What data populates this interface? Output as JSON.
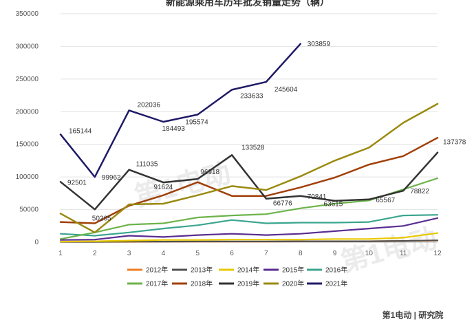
{
  "chart_data": {
    "type": "line",
    "title": "新能源乘用车历年批发销量走势（辆）",
    "x": [
      1,
      2,
      3,
      4,
      5,
      6,
      7,
      8,
      9,
      10,
      11,
      12
    ],
    "ylim": [
      0,
      350000
    ],
    "yticks": [
      0,
      50000,
      100000,
      150000,
      200000,
      250000,
      300000,
      350000
    ],
    "grid": true,
    "legend_position": "bottom",
    "series": [
      {
        "name": "2012年",
        "color": "#f07c22",
        "values": [
          500,
          500,
          500,
          800,
          1000,
          1000,
          1000,
          1200,
          1200,
          1500,
          2000,
          2500
        ]
      },
      {
        "name": "2013年",
        "color": "#505050",
        "values": [
          500,
          500,
          800,
          1000,
          1200,
          1200,
          1200,
          1500,
          1500,
          1500,
          2000,
          3000
        ]
      },
      {
        "name": "2014年",
        "color": "#e8c800",
        "values": [
          1000,
          1500,
          2500,
          3500,
          3500,
          4000,
          4000,
          4000,
          5000,
          5000,
          7000,
          14000
        ]
      },
      {
        "name": "2015年",
        "color": "#5a2d91",
        "values": [
          3500,
          4000,
          10000,
          8000,
          11000,
          13000,
          11000,
          13000,
          17000,
          21000,
          25000,
          37000
        ]
      },
      {
        "name": "2016年",
        "color": "#3aa58f",
        "values": [
          13000,
          10000,
          15000,
          21000,
          26000,
          34000,
          29000,
          30000,
          30000,
          31000,
          41000,
          42000
        ]
      },
      {
        "name": "2017年",
        "color": "#6cb34a",
        "values": [
          5000,
          15000,
          27000,
          29000,
          38000,
          41000,
          43000,
          52000,
          59000,
          64000,
          81000,
          98000
        ]
      },
      {
        "name": "2018年",
        "color": "#a0400a",
        "values": [
          31000,
          29000,
          56000,
          72000,
          92000,
          71000,
          71000,
          84000,
          99000,
          119000,
          132000,
          160000
        ]
      },
      {
        "name": "2019年",
        "color": "#333333",
        "values": [
          92501,
          50265,
          111035,
          91624,
          96918,
          133528,
          66776,
          70841,
          63615,
          65567,
          78822,
          137378
        ]
      },
      {
        "name": "2020年",
        "color": "#9a8a10",
        "values": [
          44000,
          15000,
          58000,
          59000,
          72000,
          86000,
          80000,
          101000,
          125000,
          145000,
          183000,
          212000
        ]
      },
      {
        "name": "2021年",
        "color": "#1f1a66",
        "values": [
          165144,
          99962,
          202036,
          184493,
          195574,
          233633,
          245604,
          303859,
          null,
          null,
          null,
          null
        ]
      }
    ],
    "data_labels": [
      {
        "series": "2021年",
        "x": 1,
        "text": "165144"
      },
      {
        "series": "2021年",
        "x": 2,
        "text": "99962"
      },
      {
        "series": "2021年",
        "x": 3,
        "text": "202036"
      },
      {
        "series": "2021年",
        "x": 4,
        "text": "184493"
      },
      {
        "series": "2021年",
        "x": 5,
        "text": "195574"
      },
      {
        "series": "2021年",
        "x": 6,
        "text": "233633"
      },
      {
        "series": "2021年",
        "x": 7,
        "text": "245604"
      },
      {
        "series": "2021年",
        "x": 8,
        "text": "303859"
      },
      {
        "series": "2019年",
        "x": 1,
        "text": "92501"
      },
      {
        "series": "2019年",
        "x": 2,
        "text": "50265"
      },
      {
        "series": "2019年",
        "x": 3,
        "text": "111035"
      },
      {
        "series": "2019年",
        "x": 4,
        "text": "91624"
      },
      {
        "series": "2019年",
        "x": 5,
        "text": "96918"
      },
      {
        "series": "2019年",
        "x": 6,
        "text": "133528"
      },
      {
        "series": "2019年",
        "x": 7,
        "text": "66776"
      },
      {
        "series": "2019年",
        "x": 8,
        "text": "70841"
      },
      {
        "series": "2019年",
        "x": 9,
        "text": "63615"
      },
      {
        "series": "2019年",
        "x": 10,
        "text": "65567"
      },
      {
        "series": "2019年",
        "x": 11,
        "text": "78822"
      },
      {
        "series": "2019年",
        "x": 12,
        "text": "137378"
      }
    ]
  },
  "watermark": {
    "text": "第1电动",
    "footer_text": "第1电动 | 研究院"
  }
}
